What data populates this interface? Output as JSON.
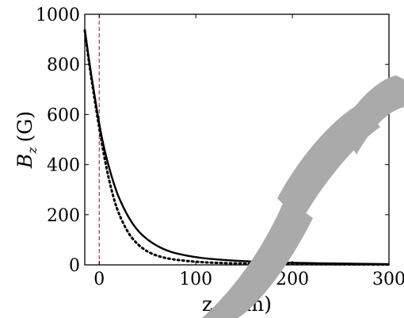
{
  "chart_data": {
    "type": "line",
    "xlabel": "z  (mm)",
    "ylabel_symbol": "B",
    "ylabel_subscript": "z",
    "ylabel_unit": "(G)",
    "xlim": [
      -15,
      300
    ],
    "ylim": [
      0,
      1000
    ],
    "x_ticks": [
      0,
      100,
      200,
      300
    ],
    "y_ticks": [
      0,
      200,
      400,
      600,
      800,
      1000
    ],
    "grid": false,
    "reference_line": {
      "x": 0,
      "color": "#d62728",
      "style": "dashed"
    },
    "series": [
      {
        "style": "solid",
        "color": "#000000",
        "x": [
          -15,
          -10,
          -5,
          0,
          5,
          10,
          15,
          20,
          30,
          40,
          50,
          60,
          70,
          80,
          100,
          120,
          150,
          200,
          250,
          300
        ],
        "y": [
          940,
          800,
          680,
          560,
          465,
          390,
          325,
          270,
          190,
          135,
          100,
          75,
          57,
          45,
          30,
          22,
          14,
          8,
          5,
          3
        ]
      },
      {
        "style": "dotted",
        "color": "#000000",
        "x": [
          -15,
          -10,
          -5,
          0,
          5,
          10,
          15,
          20,
          30,
          40,
          50,
          60,
          70,
          80,
          100,
          120,
          150,
          200,
          250,
          300
        ],
        "y": [
          935,
          790,
          665,
          545,
          435,
          340,
          265,
          205,
          125,
          80,
          52,
          36,
          26,
          20,
          12,
          8,
          5,
          3,
          2,
          1
        ]
      }
    ]
  },
  "watermark": {
    "color": "#aaaaaa"
  }
}
